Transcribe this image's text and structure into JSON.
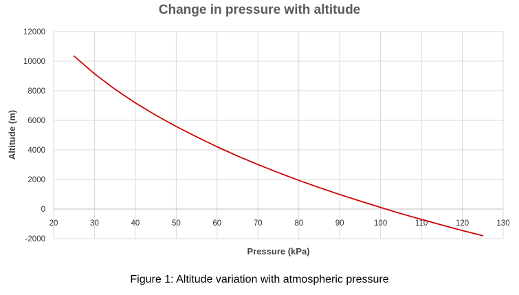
{
  "caption": "Figure 1: Altitude variation with atmospheric pressure",
  "chart_data": {
    "type": "line",
    "title": "Change in pressure with altitude",
    "xlabel": "Pressure (kPa)",
    "ylabel": "Altitude (m)",
    "xlim": [
      20,
      130
    ],
    "ylim": [
      -2000,
      12000
    ],
    "x_ticks": [
      20,
      30,
      40,
      50,
      60,
      70,
      80,
      90,
      100,
      110,
      120,
      130
    ],
    "y_ticks": [
      12000,
      10000,
      8000,
      6000,
      4000,
      2000,
      0,
      -2000
    ],
    "grid": true,
    "legend": "none",
    "series": [
      {
        "color": "#cc0000",
        "x": [
          25,
          30,
          35,
          40,
          45,
          50,
          55,
          60,
          65,
          70,
          75,
          80,
          85,
          90,
          95,
          100,
          105,
          110,
          115,
          120,
          125
        ],
        "y": [
          10350,
          9150,
          8100,
          7180,
          6350,
          5580,
          4880,
          4210,
          3590,
          3010,
          2460,
          1940,
          1450,
          980,
          540,
          110,
          -310,
          -700,
          -1080,
          -1450,
          -1800
        ]
      }
    ]
  }
}
